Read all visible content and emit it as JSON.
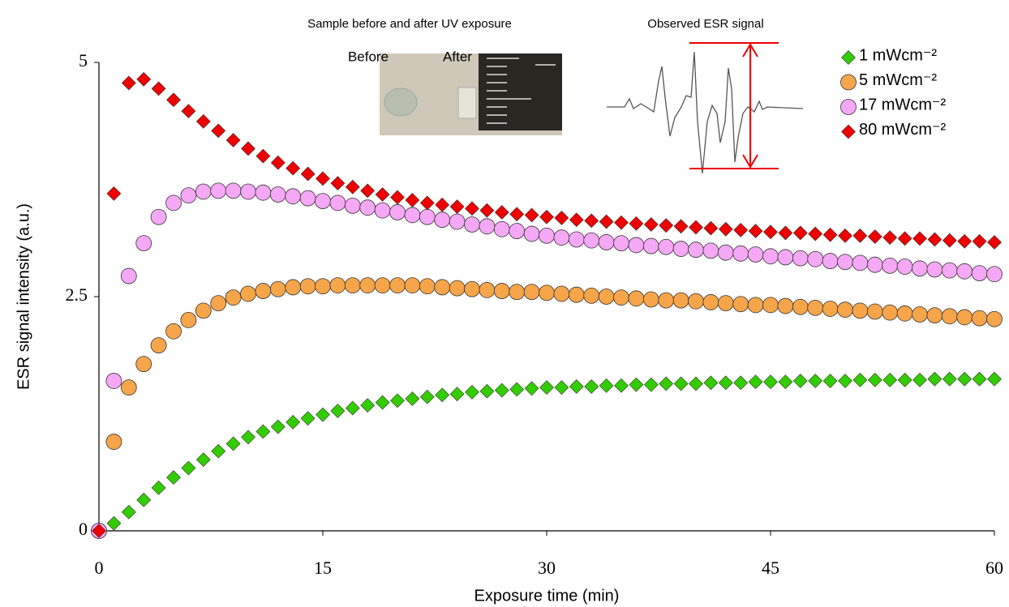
{
  "chart_data": {
    "type": "scatter",
    "xlabel": "Exposure time (min)",
    "ylabel": "ESR signal intensity (a.u.)",
    "annotations": [
      "Sample before and after UV exposure",
      "Before",
      "After",
      "Observed ESR signal"
    ],
    "xlim": [
      0,
      60
    ],
    "xticks": [
      0,
      15,
      30,
      45,
      60
    ],
    "ylim": [
      0,
      5
    ],
    "yticks": [
      0,
      2.5,
      5
    ],
    "grid": false,
    "legend": "upper right",
    "x": [
      0,
      1,
      2,
      3,
      4,
      5,
      6,
      7,
      8,
      9,
      10,
      11,
      12,
      13,
      14,
      15,
      16,
      17,
      18,
      19,
      20,
      21,
      22,
      23,
      24,
      25,
      26,
      27,
      28,
      29,
      30,
      31,
      32,
      33,
      34,
      35,
      36,
      37,
      38,
      39,
      40,
      41,
      42,
      43,
      44,
      45,
      46,
      47,
      48,
      49,
      50,
      51,
      52,
      53,
      54,
      55,
      56,
      57,
      58,
      59,
      60
    ],
    "series": [
      {
        "name": "1 mWcm⁻²",
        "color": "#33cc00",
        "marker": "diamond",
        "values": [
          0,
          0.08,
          0.2,
          0.33,
          0.46,
          0.57,
          0.67,
          0.76,
          0.85,
          0.93,
          1.0,
          1.06,
          1.11,
          1.16,
          1.2,
          1.24,
          1.28,
          1.31,
          1.34,
          1.37,
          1.39,
          1.41,
          1.43,
          1.45,
          1.46,
          1.48,
          1.49,
          1.5,
          1.51,
          1.52,
          1.53,
          1.53,
          1.54,
          1.54,
          1.55,
          1.55,
          1.56,
          1.56,
          1.57,
          1.57,
          1.57,
          1.58,
          1.58,
          1.58,
          1.59,
          1.59,
          1.59,
          1.6,
          1.6,
          1.6,
          1.6,
          1.61,
          1.61,
          1.61,
          1.61,
          1.61,
          1.62,
          1.62,
          1.62,
          1.62,
          1.62
        ]
      },
      {
        "name": "5 mWcm⁻²",
        "color": "#f7a54a",
        "marker": "circle",
        "values": [
          0,
          0.95,
          1.53,
          1.78,
          1.98,
          2.13,
          2.25,
          2.35,
          2.43,
          2.49,
          2.53,
          2.56,
          2.58,
          2.6,
          2.61,
          2.61,
          2.62,
          2.62,
          2.62,
          2.62,
          2.62,
          2.62,
          2.61,
          2.6,
          2.59,
          2.58,
          2.57,
          2.56,
          2.55,
          2.55,
          2.54,
          2.53,
          2.52,
          2.51,
          2.5,
          2.49,
          2.48,
          2.47,
          2.46,
          2.46,
          2.45,
          2.44,
          2.43,
          2.42,
          2.41,
          2.41,
          2.4,
          2.39,
          2.38,
          2.37,
          2.36,
          2.35,
          2.34,
          2.33,
          2.32,
          2.31,
          2.3,
          2.29,
          2.28,
          2.27,
          2.26
        ]
      },
      {
        "name": "17 mWcm⁻²",
        "color": "#f5a8f5",
        "marker": "circle",
        "values": [
          0,
          1.6,
          2.72,
          3.07,
          3.35,
          3.5,
          3.58,
          3.62,
          3.63,
          3.63,
          3.62,
          3.61,
          3.59,
          3.57,
          3.55,
          3.52,
          3.5,
          3.47,
          3.45,
          3.42,
          3.4,
          3.37,
          3.35,
          3.32,
          3.3,
          3.27,
          3.25,
          3.22,
          3.2,
          3.17,
          3.15,
          3.13,
          3.11,
          3.1,
          3.08,
          3.07,
          3.05,
          3.04,
          3.03,
          3.01,
          3.0,
          2.99,
          2.97,
          2.96,
          2.95,
          2.93,
          2.92,
          2.91,
          2.9,
          2.88,
          2.87,
          2.86,
          2.84,
          2.83,
          2.82,
          2.8,
          2.79,
          2.78,
          2.77,
          2.75,
          2.74
        ]
      },
      {
        "name": "80 mWcm⁻²",
        "color": "#ee0000",
        "marker": "diamond",
        "values": [
          0,
          3.6,
          4.78,
          4.82,
          4.72,
          4.6,
          4.48,
          4.37,
          4.27,
          4.17,
          4.08,
          4.0,
          3.93,
          3.87,
          3.81,
          3.76,
          3.71,
          3.67,
          3.63,
          3.59,
          3.56,
          3.53,
          3.5,
          3.48,
          3.46,
          3.44,
          3.42,
          3.4,
          3.38,
          3.37,
          3.35,
          3.34,
          3.32,
          3.31,
          3.3,
          3.29,
          3.28,
          3.27,
          3.26,
          3.25,
          3.24,
          3.23,
          3.22,
          3.21,
          3.2,
          3.19,
          3.18,
          3.18,
          3.17,
          3.16,
          3.15,
          3.15,
          3.14,
          3.13,
          3.12,
          3.12,
          3.11,
          3.1,
          3.09,
          3.09,
          3.08
        ]
      }
    ]
  }
}
